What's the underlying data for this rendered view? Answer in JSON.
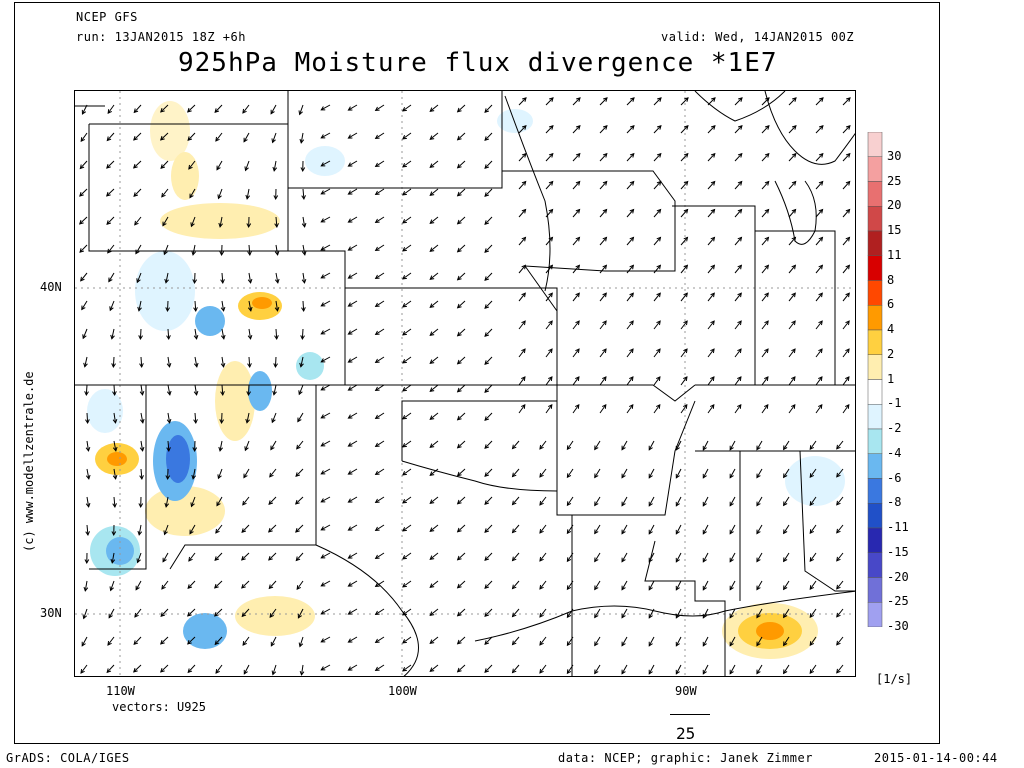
{
  "header": {
    "model": "NCEP GFS",
    "run": "run: 13JAN2015 18Z +6h",
    "valid": "valid: Wed, 14JAN2015 00Z",
    "title": "925hPa Moisture flux divergence *1E7"
  },
  "axes": {
    "lat_labels": [
      "40N",
      "30N"
    ],
    "lon_labels": [
      "110W",
      "100W",
      "90W"
    ]
  },
  "vectors_label": "vectors: U925",
  "vector_scale": "25",
  "unit": "[1/s]",
  "side_credit": "(c) www.modellzentrale.de",
  "footer": {
    "grads": "GrADS: COLA/IGES",
    "data": "data: NCEP; graphic: Janek Zimmer",
    "timestamp": "2015-01-14-00:44"
  },
  "legend": {
    "levels": [
      "30",
      "25",
      "20",
      "15",
      "11",
      "8",
      "6",
      "4",
      "2",
      "1",
      "-1",
      "-2",
      "-4",
      "-6",
      "-8",
      "-11",
      "-15",
      "-20",
      "-25",
      "-30"
    ],
    "colors": [
      "#f8d0d0",
      "#f4a0a0",
      "#e87070",
      "#d04848",
      "#b02020",
      "#d80000",
      "#ff4800",
      "#ff9a00",
      "#ffd040",
      "#ffeeb0",
      "#ffffff",
      "#dff4ff",
      "#a8e6f0",
      "#6ab8f0",
      "#3a78e0",
      "#2050c8",
      "#2828b0",
      "#4848c8",
      "#7070d8",
      "#a0a0f0"
    ]
  }
}
